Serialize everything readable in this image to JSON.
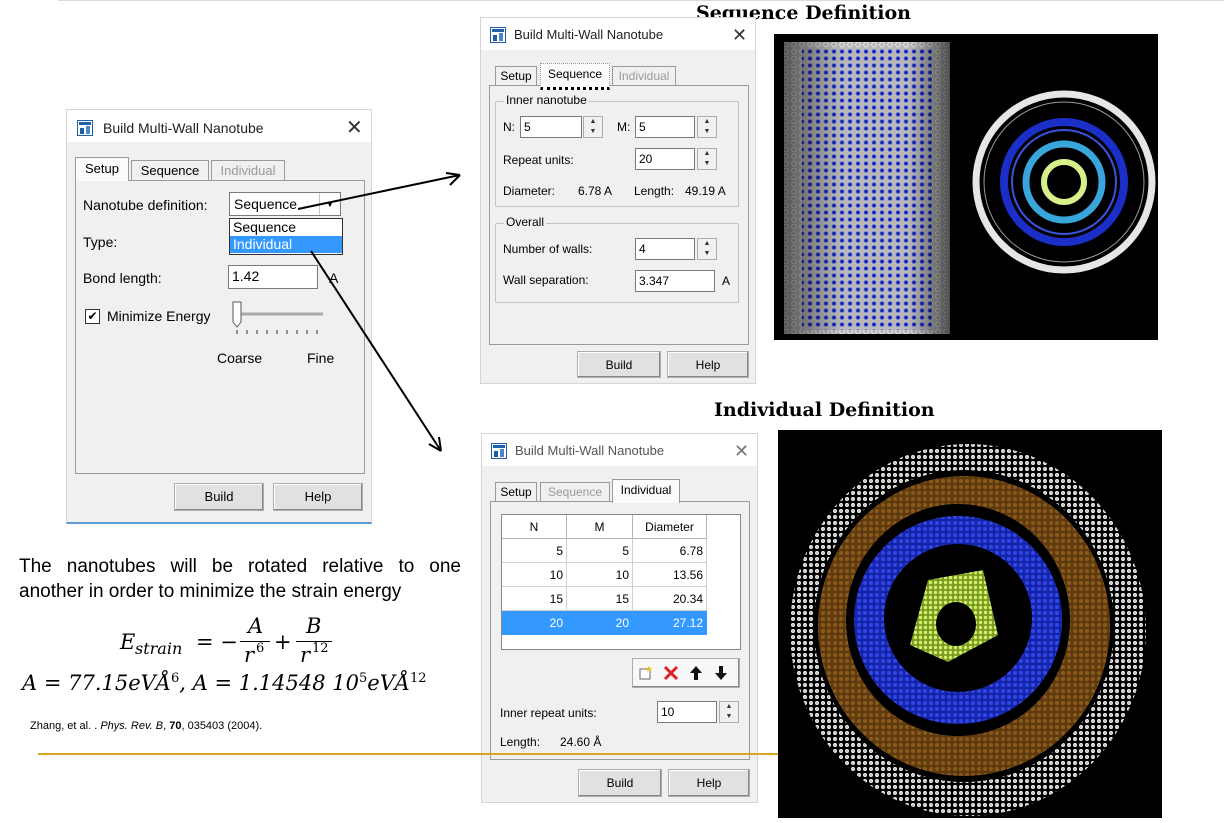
{
  "dialog_title": "Build Multi-Wall Nanotube",
  "tabs": {
    "setup": "Setup",
    "sequence": "Sequence",
    "individual": "Individual"
  },
  "buttons": {
    "build": "Build",
    "help": "Help"
  },
  "setup_dialog": {
    "nanotube_definition_label": "Nanotube definition:",
    "nanotube_definition_value": "Sequence",
    "dropdown_options": [
      "Sequence",
      "Individual"
    ],
    "type_label": "Type:",
    "bond_length_label": "Bond length:",
    "bond_length_value": "1.42",
    "bond_length_unit": "A",
    "minimize_energy_label": "Minimize Energy",
    "minimize_energy_checked": "✔",
    "slider_min_label": "Coarse",
    "slider_max_label": "Fine"
  },
  "sequence_dialog": {
    "caption": "Sequence Definition",
    "inner_group_label": "Inner nanotube",
    "n_label": "N:",
    "n_value": "5",
    "m_label": "M:",
    "m_value": "5",
    "repeat_units_label": "Repeat units:",
    "repeat_units_value": "20",
    "diameter_label": "Diameter:",
    "diameter_value": "6.78 A",
    "length_label": "Length:",
    "length_value": "49.19 A",
    "overall_group_label": "Overall",
    "walls_label": "Number of walls:",
    "walls_value": "4",
    "separation_label": "Wall separation:",
    "separation_value": "3.347",
    "separation_unit": "A"
  },
  "individual_dialog": {
    "caption": "Individual Definition",
    "columns": [
      "N",
      "M",
      "Diameter"
    ],
    "rows": [
      {
        "n": "5",
        "m": "5",
        "diameter": "6.78"
      },
      {
        "n": "10",
        "m": "10",
        "diameter": "13.56"
      },
      {
        "n": "15",
        "m": "15",
        "diameter": "20.34"
      },
      {
        "n": "20",
        "m": "20",
        "diameter": "27.12"
      }
    ],
    "inner_repeat_label": "Inner repeat units:",
    "inner_repeat_value": "10",
    "length_label": "Length:",
    "length_value": "24.60 Å"
  },
  "text": {
    "paragraph": "The nanotubes will be rotated relative to one another in order to minimize the strain energy",
    "eq_E": "E",
    "eq_strain_sub": "strain",
    "eq_equals": "= −",
    "eq_A": "A",
    "eq_r6": "r",
    "eq_6": "6",
    "eq_plus": "+",
    "eq_B": "B",
    "eq_r12": "r",
    "eq_12": "12",
    "const_A": "A = 77.15eVÅ",
    "const_A_exp": "6",
    "const_sep": ", A = 1.14548 10",
    "const_10_exp": "5",
    "const_unit": "eVÅ",
    "const_unit_exp": "12",
    "cite_authors": "Zhang, et al. . ",
    "cite_journal": "Phys. Rev. B",
    "cite_sep": ", ",
    "cite_volume": "70",
    "cite_rest": ", 035403 (2004)."
  },
  "colors": {
    "selection": "#3399ff",
    "gold_rule": "#d9a521",
    "tube_white": "#d8d8d8",
    "tube_blue": "#1e2fd0",
    "tube_cyan": "#3aa0d8",
    "tube_yellow": "#c8e86a",
    "tube_brown": "#7a4a12"
  }
}
